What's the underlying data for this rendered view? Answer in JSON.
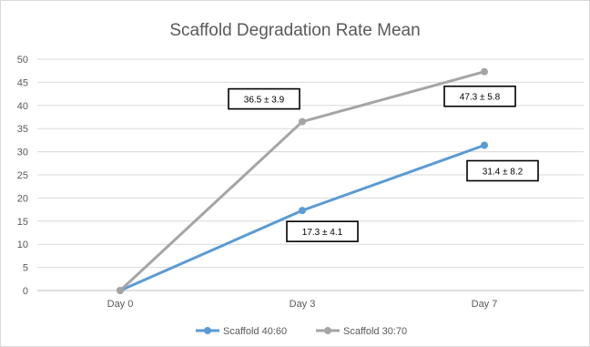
{
  "chart_data": {
    "type": "line",
    "title": "Scaffold Degradation Rate Mean",
    "categories": [
      "Day 0",
      "Day 3",
      "Day 7"
    ],
    "ylim": [
      0,
      50
    ],
    "yticks": [
      0,
      5,
      10,
      15,
      20,
      25,
      30,
      35,
      40,
      45,
      50
    ],
    "grid": true,
    "legend_position": "bottom",
    "series": [
      {
        "name": "Scaffold 40:60",
        "color": "#5b9bd5",
        "values": [
          0,
          17.3,
          31.4
        ]
      },
      {
        "name": "Scaffold 30:70",
        "color": "#a5a5a5",
        "values": [
          0,
          36.5,
          47.3
        ]
      }
    ],
    "annotations": [
      {
        "series": 1,
        "index": 1,
        "text": "36.5 ± 3.9"
      },
      {
        "series": 1,
        "index": 2,
        "text": "47.3 ± 5.8"
      },
      {
        "series": 0,
        "index": 2,
        "text": "31.4 ± 8.2"
      },
      {
        "series": 0,
        "index": 1,
        "text": "17.3 ± 4.1"
      }
    ]
  }
}
